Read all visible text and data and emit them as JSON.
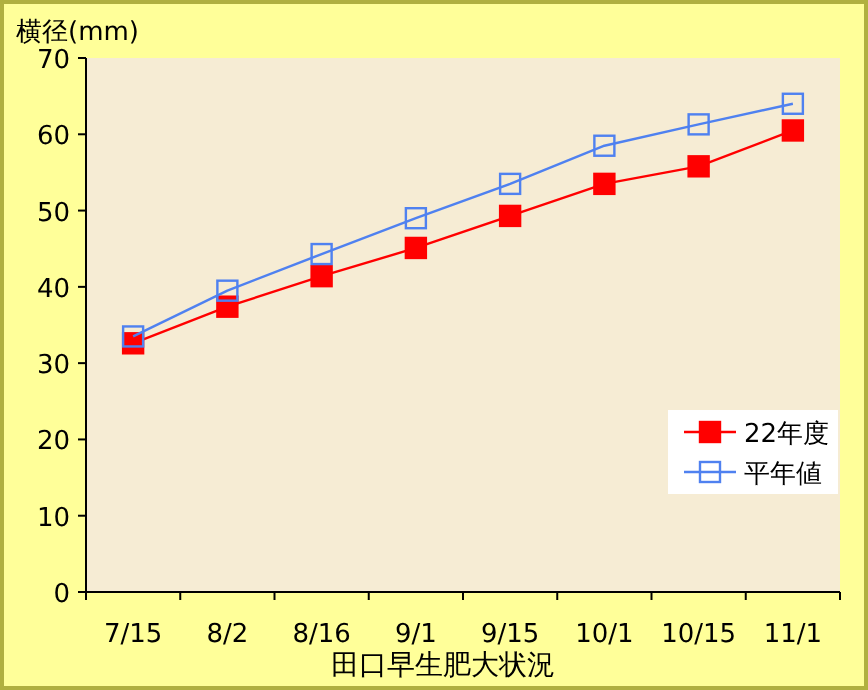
{
  "chart_data": {
    "type": "line",
    "ylabel": "横径(mm)",
    "xlabel": "田口早生肥大状況",
    "categories": [
      "7/15",
      "8/2",
      "8/16",
      "9/1",
      "9/15",
      "10/1",
      "10/15",
      "11/1"
    ],
    "series": [
      {
        "name": "22年度",
        "color": "#ff0000",
        "values": [
          32.6,
          37.4,
          41.4,
          45.1,
          49.3,
          53.5,
          55.8,
          60.5
        ]
      },
      {
        "name": "平年値",
        "color": "#4f81f0",
        "values": [
          33.5,
          39.5,
          44.3,
          49.0,
          53.5,
          58.5,
          61.3,
          64.0
        ]
      }
    ],
    "ylim": [
      0,
      70
    ],
    "yticks": [
      0,
      10,
      20,
      30,
      40,
      50,
      60,
      70
    ],
    "marker": "square",
    "legend": "bottom right",
    "grid": false
  }
}
